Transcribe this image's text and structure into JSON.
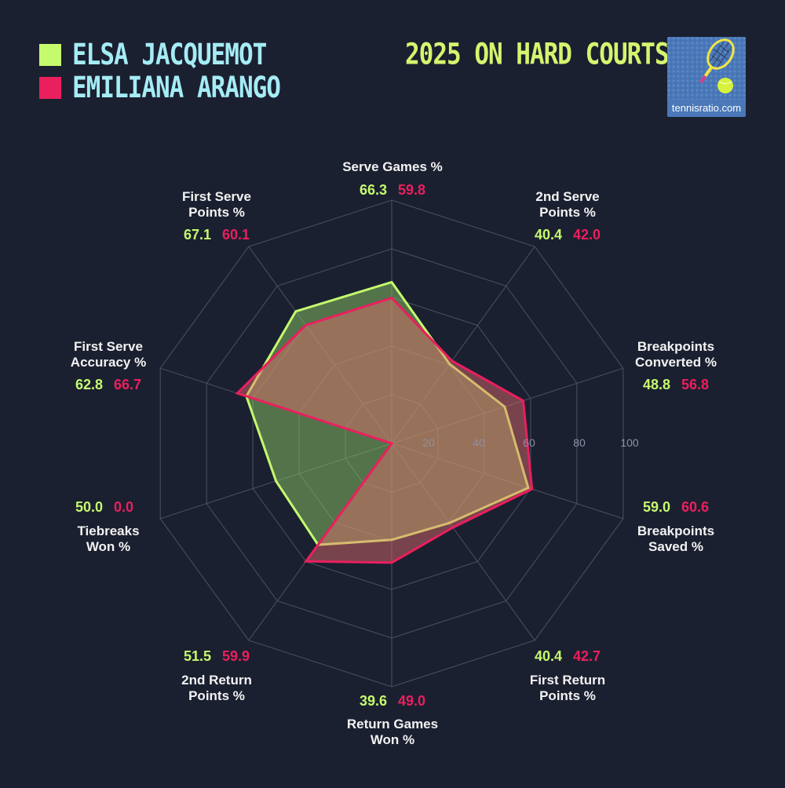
{
  "legend": [
    {
      "name": "ELSA JACQUEMOT",
      "color": "#c5fa6e"
    },
    {
      "name": "EMILIANA ARANGO",
      "color": "#ea1f5e"
    }
  ],
  "title": "2025 ON HARD COURTS",
  "logo": {
    "text": "tennisratio.com",
    "icon": "tennis-racket-ball-icon"
  },
  "chart_data": {
    "type": "radar",
    "title": "2025 ON HARD COURTS",
    "rmax": 100,
    "rings": [
      20,
      40,
      60,
      80,
      100
    ],
    "ring_labels": [
      "20",
      "40",
      "60",
      "80",
      "100"
    ],
    "axes": [
      {
        "label": [
          "Serve Games %"
        ]
      },
      {
        "label": [
          "2nd Serve",
          "Points %"
        ]
      },
      {
        "label": [
          "Breakpoints",
          "Converted %"
        ]
      },
      {
        "label": [
          "Breakpoints",
          "Saved %"
        ]
      },
      {
        "label": [
          "First Return",
          "Points %"
        ]
      },
      {
        "label": [
          "Return Games",
          "Won %"
        ]
      },
      {
        "label": [
          "2nd Return",
          "Points %"
        ]
      },
      {
        "label": [
          "Tiebreaks",
          "Won %"
        ]
      },
      {
        "label": [
          "First Serve",
          "Accuracy %"
        ]
      },
      {
        "label": [
          "First Serve",
          "Points %"
        ]
      }
    ],
    "series": [
      {
        "name": "ELSA JACQUEMOT",
        "color": "#c5fa6e",
        "values": [
          66.3,
          40.4,
          48.8,
          59.0,
          40.4,
          39.6,
          51.5,
          50.0,
          62.8,
          67.1
        ],
        "value_labels": [
          "66.3",
          "40.4",
          "48.8",
          "59.0",
          "40.4",
          "39.6",
          "51.5",
          "50.0",
          "62.8",
          "67.1"
        ]
      },
      {
        "name": "EMILIANA ARANGO",
        "color": "#ea1f5e",
        "values": [
          59.8,
          42.0,
          56.8,
          60.6,
          42.7,
          49.0,
          59.9,
          0.0,
          66.7,
          60.1
        ],
        "value_labels": [
          "59.8",
          "42.0",
          "56.8",
          "60.6",
          "42.7",
          "49.0",
          "59.9",
          "0.0",
          "66.7",
          "60.1"
        ]
      }
    ]
  }
}
